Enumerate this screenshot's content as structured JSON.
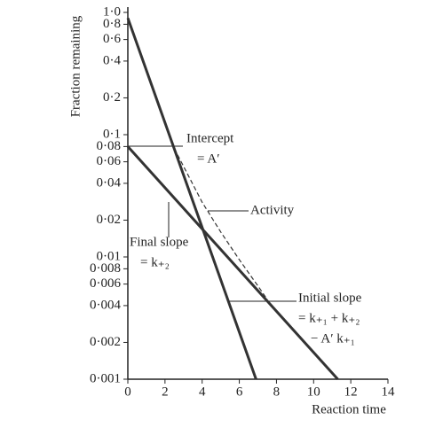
{
  "chart_data": {
    "type": "line",
    "log_y": true,
    "xlabel": "Reaction time",
    "ylabel": "Fraction remaining",
    "xlim": [
      0,
      14
    ],
    "xticks": [
      0,
      2,
      4,
      6,
      8,
      10,
      12,
      14
    ],
    "ylim": [
      0.001,
      1.0
    ],
    "yticks": [
      {
        "value": 1.0,
        "label": "1·0"
      },
      {
        "value": 0.8,
        "label": "0·8"
      },
      {
        "value": 0.6,
        "label": "0·6"
      },
      {
        "value": 0.4,
        "label": "0·4"
      },
      {
        "value": 0.2,
        "label": "0·2"
      },
      {
        "value": 0.1,
        "label": "0·1"
      },
      {
        "value": 0.08,
        "label": "0·08"
      },
      {
        "value": 0.06,
        "label": "0·06"
      },
      {
        "value": 0.04,
        "label": "0·04"
      },
      {
        "value": 0.02,
        "label": "0·02"
      },
      {
        "value": 0.01,
        "label": "0·01"
      },
      {
        "value": 0.008,
        "label": "0·008"
      },
      {
        "value": 0.006,
        "label": "0·006"
      },
      {
        "value": 0.004,
        "label": "0·004"
      },
      {
        "value": 0.002,
        "label": "0·002"
      },
      {
        "value": 0.001,
        "label": "0·001"
      }
    ],
    "series": [
      {
        "x": [
          0,
          6.9
        ],
        "values": [
          0.9,
          0.001
        ],
        "color": "#333333",
        "dashed": false
      },
      {
        "x": [
          0,
          11.3
        ],
        "values": [
          0.08,
          0.001
        ],
        "color": "#333333",
        "dashed": false
      },
      {
        "x": [
          2.5,
          3,
          4,
          5,
          6,
          7,
          7.5
        ],
        "values": [
          0.077,
          0.055,
          0.028,
          0.016,
          0.0095,
          0.0058,
          0.0045
        ],
        "color": "#333333",
        "dashed": true
      }
    ],
    "annotations": [
      "Intercept",
      "= A′",
      "Activity",
      "Final slope",
      "= k₊₂",
      "Initial slope",
      "= k₊₁ + k₊₂",
      "− A′ k₊₁"
    ]
  }
}
